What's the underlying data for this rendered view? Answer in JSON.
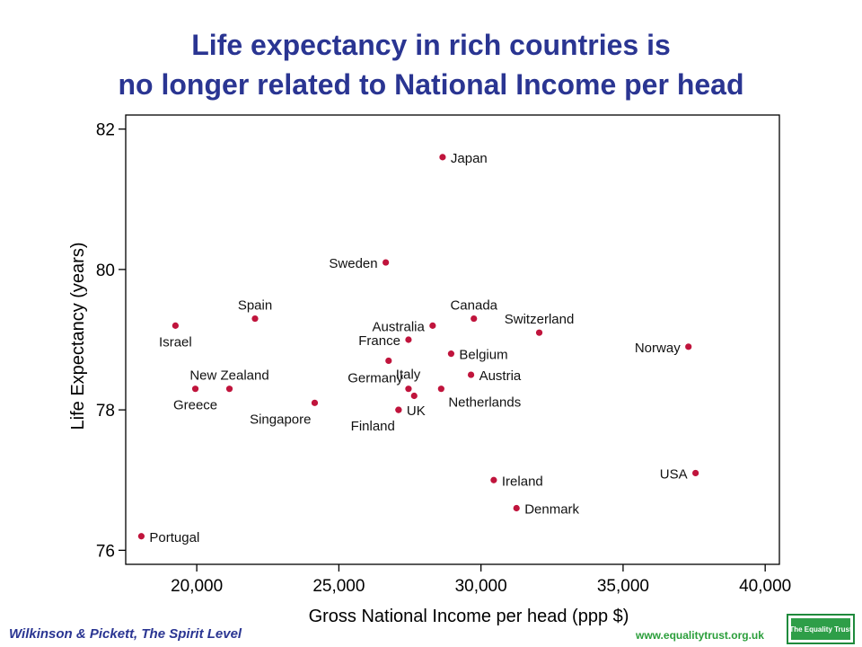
{
  "title_line1": "Life expectancy in rich countries is",
  "title_line2": "no longer related to National Income per head",
  "footer_left": "Wilkinson & Pickett, The Spirit Level",
  "footer_right": "www.equalitytrust.org.uk",
  "logo_text": "The Equality Trust",
  "colors": {
    "title": "#2a3592",
    "point": "#c0143c",
    "footer_right": "#2a9e3a",
    "logo": "#2e9e48"
  },
  "chart_data": {
    "type": "scatter",
    "xlabel": "Gross National Income per head (ppp $)",
    "ylabel": "Life Expectancy (years)",
    "xlim": [
      17500,
      40500
    ],
    "ylim": [
      75.8,
      82.2
    ],
    "xticks": [
      20000,
      25000,
      30000,
      35000,
      40000
    ],
    "xtick_labels": [
      "20,000",
      "25,000",
      "30,000",
      "35,000",
      "40,000"
    ],
    "yticks": [
      76,
      78,
      80,
      82
    ],
    "ytick_labels": [
      "76",
      "78",
      "80",
      "82"
    ],
    "grid": false,
    "points": [
      {
        "label": "Japan",
        "x": 28650,
        "y": 81.6,
        "label_side": "right"
      },
      {
        "label": "Sweden",
        "x": 26650,
        "y": 80.1,
        "label_side": "left"
      },
      {
        "label": "Spain",
        "x": 22050,
        "y": 79.3,
        "label_side": "above"
      },
      {
        "label": "Israel",
        "x": 19250,
        "y": 79.2,
        "label_side": "below"
      },
      {
        "label": "Canada",
        "x": 29750,
        "y": 79.3,
        "label_side": "above"
      },
      {
        "label": "Australia",
        "x": 28300,
        "y": 79.2,
        "label_side": "left"
      },
      {
        "label": "Switzerland",
        "x": 32050,
        "y": 79.1,
        "label_side": "above"
      },
      {
        "label": "France",
        "x": 27450,
        "y": 79.0,
        "label_side": "left"
      },
      {
        "label": "Norway",
        "x": 37300,
        "y": 78.9,
        "label_side": "left"
      },
      {
        "label": "Belgium",
        "x": 28950,
        "y": 78.8,
        "label_side": "right"
      },
      {
        "label": "Italy",
        "x": 26750,
        "y": 78.7,
        "label_side": "below-right"
      },
      {
        "label": "Austria",
        "x": 29650,
        "y": 78.5,
        "label_side": "right"
      },
      {
        "label": "Germany",
        "x": 27450,
        "y": 78.3,
        "label_side": "above-left"
      },
      {
        "label": "Netherlands",
        "x": 28600,
        "y": 78.3,
        "label_side": "below-right"
      },
      {
        "label": "New Zealand",
        "x": 21150,
        "y": 78.3,
        "label_side": "above"
      },
      {
        "label": "Greece",
        "x": 19950,
        "y": 78.3,
        "label_side": "below"
      },
      {
        "label": "",
        "x": 27650,
        "y": 78.2,
        "label_side": "none"
      },
      {
        "label": "Singapore",
        "x": 24150,
        "y": 78.1,
        "label_side": "below-left"
      },
      {
        "label": "UK",
        "x": 27100,
        "y": 78.0,
        "label_side": "right"
      },
      {
        "label": "Finland",
        "x": 27100,
        "y": 78.0,
        "label_side": "below-left"
      },
      {
        "label": "USA",
        "x": 37550,
        "y": 77.1,
        "label_side": "left"
      },
      {
        "label": "Ireland",
        "x": 30450,
        "y": 77.0,
        "label_side": "right"
      },
      {
        "label": "Denmark",
        "x": 31250,
        "y": 76.6,
        "label_side": "right"
      },
      {
        "label": "Portugal",
        "x": 18050,
        "y": 76.2,
        "label_side": "right"
      }
    ]
  }
}
